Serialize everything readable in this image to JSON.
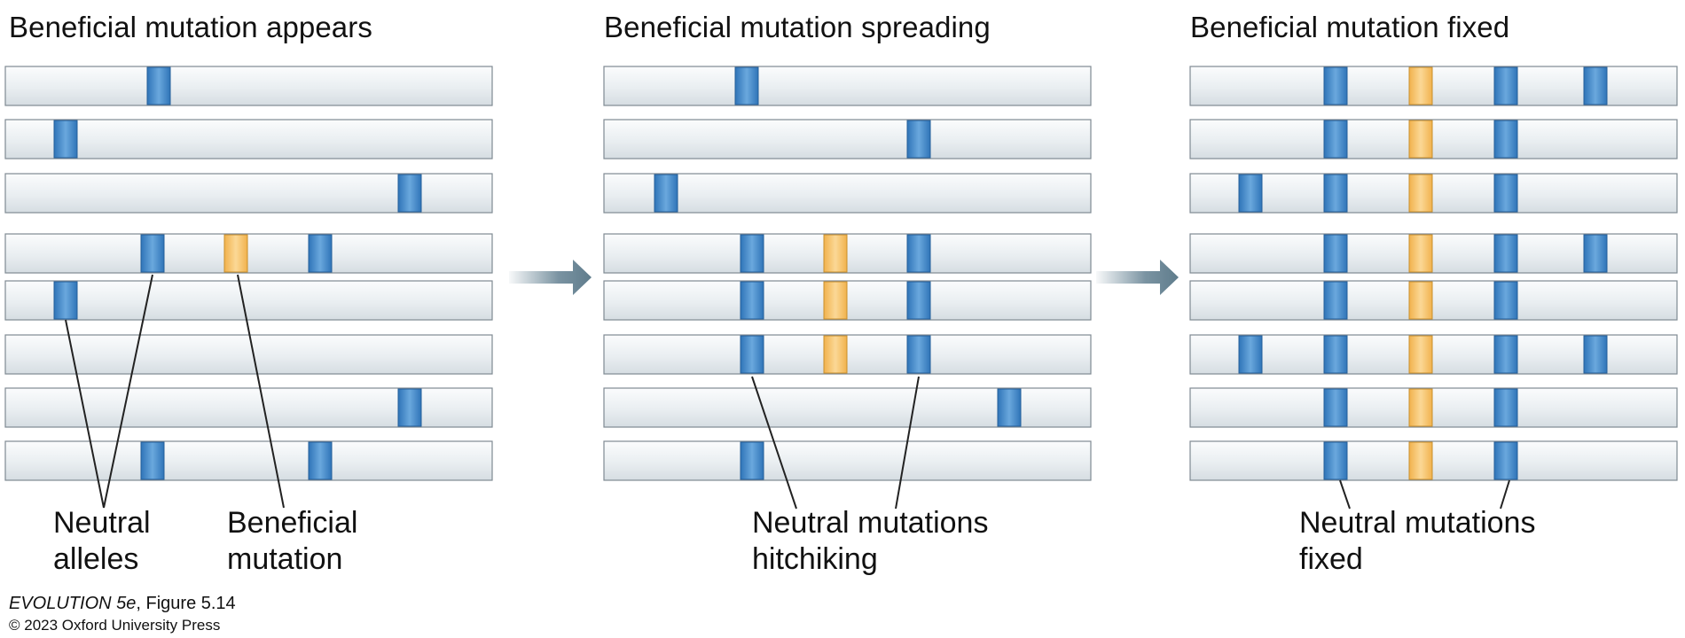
{
  "panels": [
    {
      "title": "Beneficial mutation appears",
      "labels": [
        {
          "line1": "Neutral",
          "line2": "alleles"
        },
        {
          "line1": "Beneficial",
          "line2": "mutation"
        }
      ]
    },
    {
      "title": "Beneficial mutation spreading",
      "labels": [
        {
          "line1": "Neutral mutations",
          "line2": "hitchiking"
        }
      ]
    },
    {
      "title": "Beneficial mutation fixed",
      "labels": [
        {
          "line1": "Neutral mutations",
          "line2": "fixed"
        }
      ]
    }
  ],
  "legend_colors": {
    "neutral": "#4a90cf",
    "beneficial": "#f6c870",
    "chromosome": "#e8edf0",
    "arrow": "#6b8797"
  },
  "chromosomes": [
    [
      [
        "neutral"
      ],
      [
        "neutral"
      ],
      [
        "neutral"
      ],
      [
        "neutral",
        "beneficial",
        "neutral"
      ],
      [
        "neutral"
      ],
      [],
      [
        "neutral"
      ],
      [
        "neutral",
        "neutral"
      ]
    ],
    [
      [
        "neutral"
      ],
      [
        "neutral"
      ],
      [
        "neutral"
      ],
      [
        "neutral",
        "beneficial",
        "neutral"
      ],
      [
        "neutral",
        "beneficial",
        "neutral"
      ],
      [
        "neutral",
        "beneficial",
        "neutral"
      ],
      [
        "neutral"
      ],
      [
        "neutral"
      ]
    ],
    [
      [
        "neutral",
        "beneficial",
        "neutral",
        "neutral"
      ],
      [
        "neutral",
        "beneficial",
        "neutral"
      ],
      [
        "neutral",
        "neutral",
        "beneficial",
        "neutral"
      ],
      [
        "neutral",
        "beneficial",
        "neutral",
        "neutral"
      ],
      [
        "neutral",
        "beneficial",
        "neutral"
      ],
      [
        "neutral",
        "neutral",
        "beneficial",
        "neutral",
        "neutral"
      ],
      [
        "neutral",
        "beneficial",
        "neutral"
      ],
      [
        "neutral",
        "beneficial",
        "neutral"
      ]
    ]
  ],
  "credit": {
    "book": "EVOLUTION 5e",
    "figure": ", Figure 5.14",
    "copyright": "© 2023 Oxford University Press"
  }
}
